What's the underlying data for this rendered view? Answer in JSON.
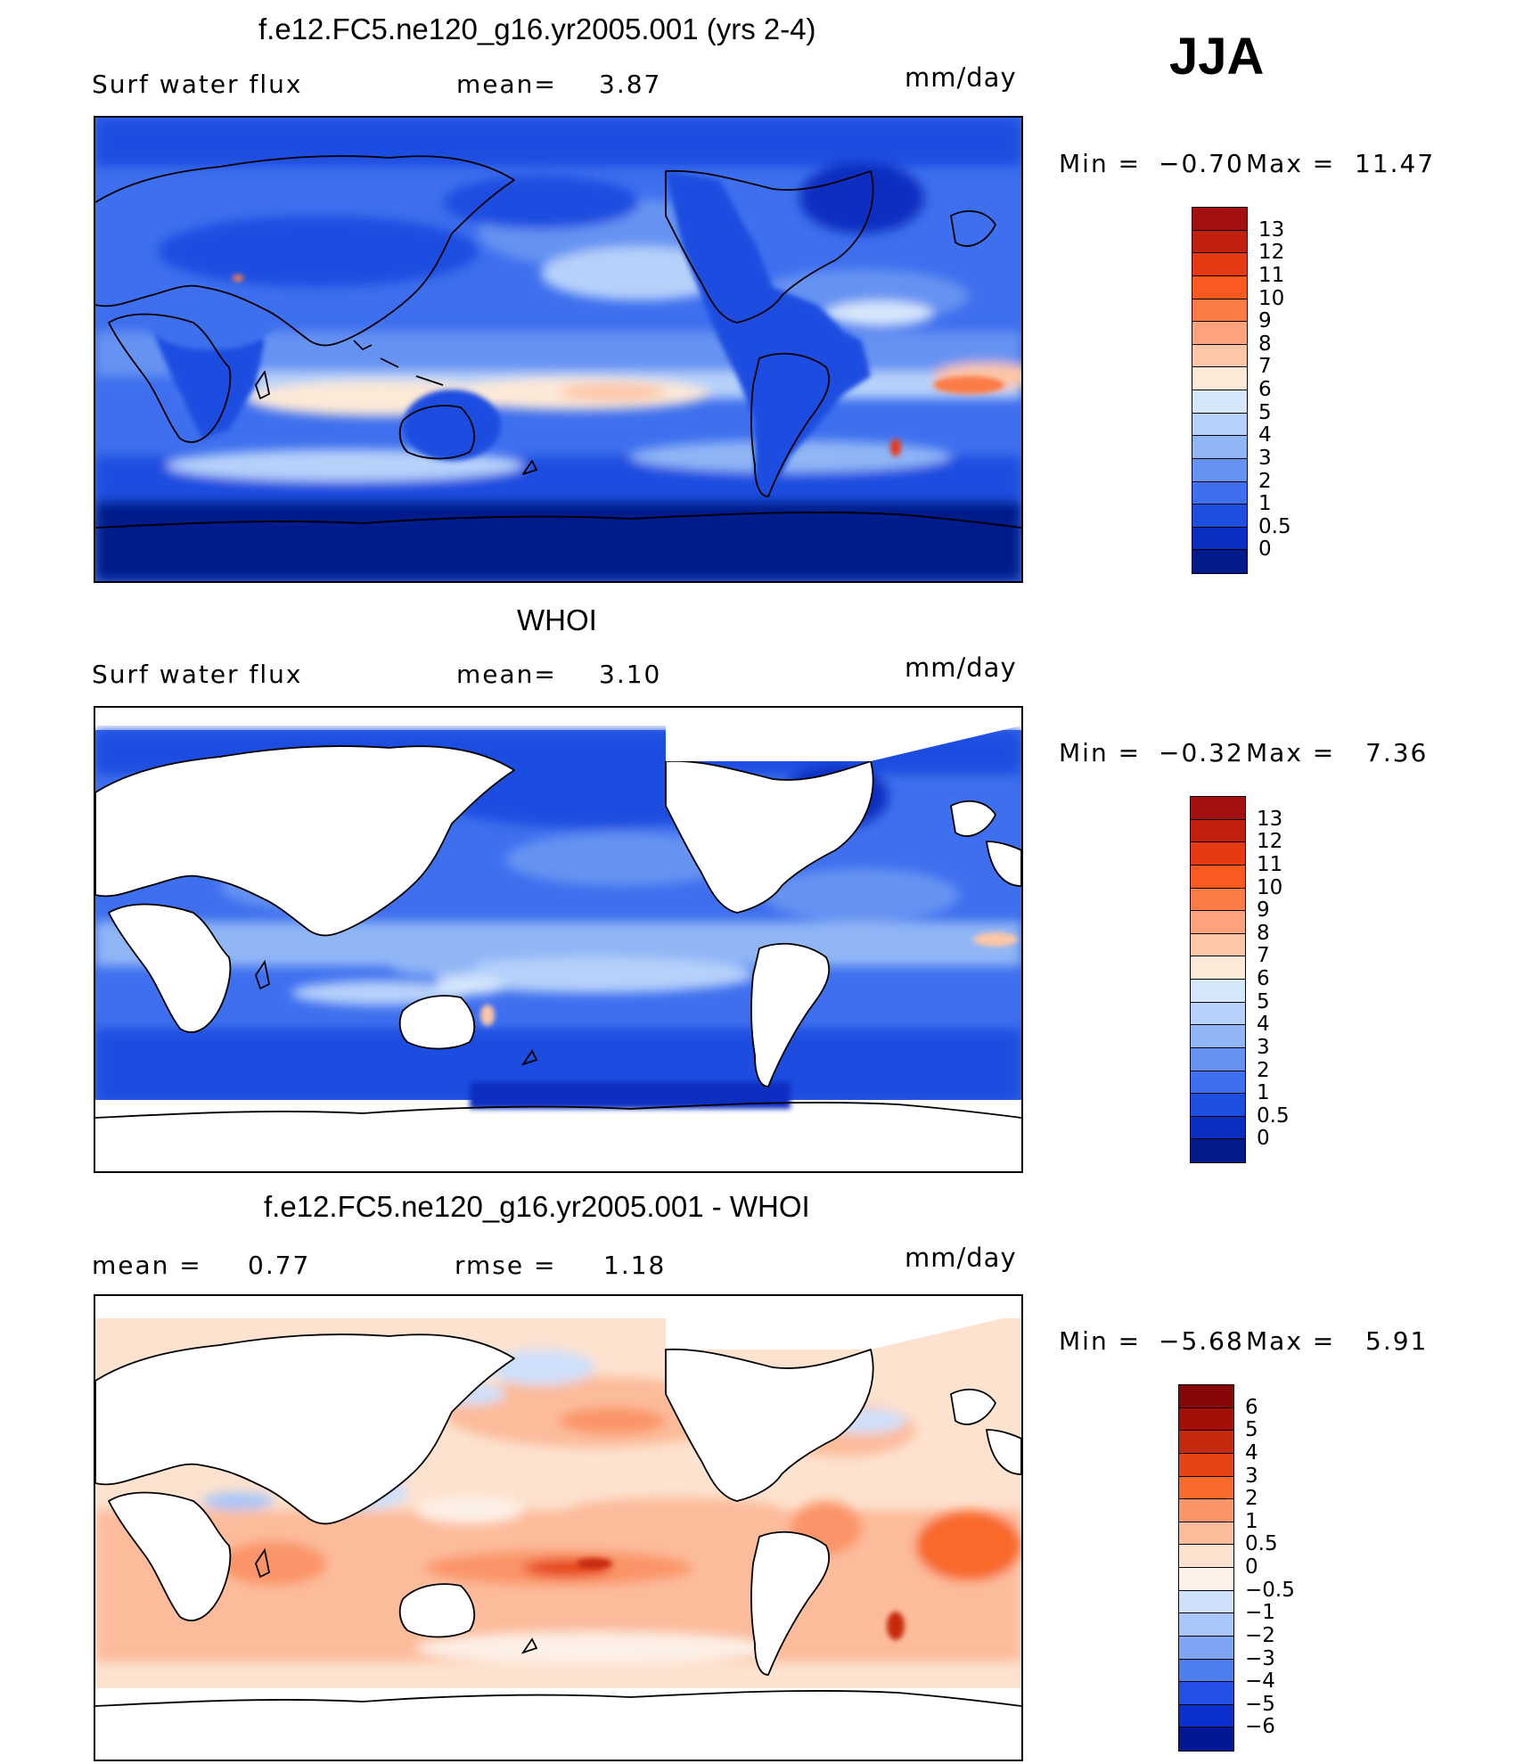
{
  "jja_label": "JJA",
  "panels": [
    {
      "id": "model",
      "title": "f.e12.FC5.ne120_g16.yr2005.001 (yrs 2-4)",
      "left_label": "Surf water flux",
      "stat1_label": "mean=",
      "stat1_value": "3.87",
      "stat2_label": "",
      "stat2_value": "",
      "units": "mm/day",
      "min_label": "Min =",
      "min_value": "−0.70",
      "max_label": "Max =",
      "max_value": "11.47",
      "colorbar_ticks": [
        "13",
        "12",
        "11",
        "10",
        "9",
        "8",
        "7",
        "6",
        "5",
        "4",
        "3",
        "2",
        "1",
        "0.5",
        "0"
      ],
      "colorbar_colors": [
        "#a40f0f",
        "#c2200f",
        "#e53a14",
        "#f85a1f",
        "#fb7c46",
        "#fca27e",
        "#fdc6a7",
        "#fde9d7",
        "#d7e7fb",
        "#b6d1fa",
        "#90b6f6",
        "#6693f2",
        "#3e6fee",
        "#1d4ee0",
        "#0a2fc0",
        "#031a8a"
      ]
    },
    {
      "id": "obs",
      "title": "WHOI",
      "left_label": "Surf water flux",
      "stat1_label": "mean=",
      "stat1_value": "3.10",
      "stat2_label": "",
      "stat2_value": "",
      "units": "mm/day",
      "min_label": "Min =",
      "min_value": "−0.32",
      "max_label": "Max =",
      "max_value": "7.36",
      "colorbar_ticks": [
        "13",
        "12",
        "11",
        "10",
        "9",
        "8",
        "7",
        "6",
        "5",
        "4",
        "3",
        "2",
        "1",
        "0.5",
        "0"
      ],
      "colorbar_colors": [
        "#a40f0f",
        "#c2200f",
        "#e53a14",
        "#f85a1f",
        "#fb7c46",
        "#fca27e",
        "#fdc6a7",
        "#fde9d7",
        "#d7e7fb",
        "#b6d1fa",
        "#90b6f6",
        "#6693f2",
        "#3e6fee",
        "#1d4ee0",
        "#0a2fc0",
        "#031a8a"
      ]
    },
    {
      "id": "diff",
      "title": "f.e12.FC5.ne120_g16.yr2005.001 - WHOI",
      "left_label": "mean =",
      "stat1_label": "",
      "stat1_value": "0.77",
      "stat2_label": "rmse =",
      "stat2_value": "1.18",
      "units": "mm/day",
      "min_label": "Min =",
      "min_value": "−5.68",
      "max_label": "Max =",
      "max_value": "5.91",
      "colorbar_ticks": [
        "6",
        "5",
        "4",
        "3",
        "2",
        "1",
        "0.5",
        "0",
        "−0.5",
        "−1",
        "−2",
        "−3",
        "−4",
        "−5",
        "−6"
      ],
      "colorbar_colors": [
        "#850707",
        "#a41008",
        "#c62a0c",
        "#e64414",
        "#f8692c",
        "#fb9467",
        "#fcbc9b",
        "#fde2cf",
        "#fdf0e6",
        "#cfe0fb",
        "#a8c6f8",
        "#7ea4f3",
        "#4f7eee",
        "#2351e6",
        "#0b2fcb",
        "#021793"
      ]
    }
  ]
}
